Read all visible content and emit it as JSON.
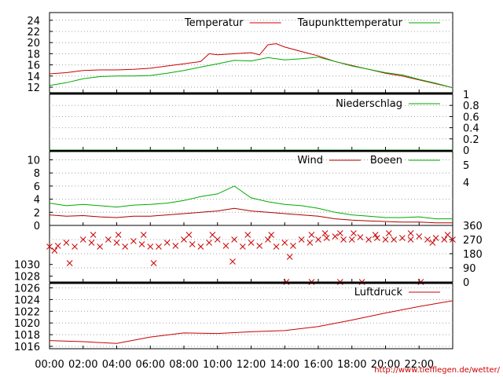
{
  "chart_data": {
    "time_labels": [
      "00:00",
      "02:00",
      "04:00",
      "06:00",
      "08:00",
      "10:00",
      "12:00",
      "14:00",
      "16:00",
      "18:00",
      "20:00",
      "22:00"
    ],
    "footer_url": "http://www.tiefflegen.de/wetter/",
    "panels": [
      {
        "id": "temperature",
        "type": "line",
        "ylim": [
          11,
          25
        ],
        "yticks": [
          12,
          14,
          16,
          18,
          20,
          22,
          24
        ],
        "y_axis_side": "left",
        "series": [
          {
            "name": "Temperatur",
            "color": "#cc0000",
            "x_hours": [
              0,
              1,
              2,
              3,
              4,
              5,
              6,
              7,
              8,
              9,
              9.5,
              10,
              11,
              12,
              12.5,
              13,
              13.5,
              14,
              15,
              16,
              17,
              18,
              19,
              20,
              21,
              22,
              23,
              24
            ],
            "values": [
              14.4,
              14.6,
              15.0,
              15.1,
              15.1,
              15.2,
              15.4,
              15.8,
              16.2,
              16.6,
              18.0,
              17.8,
              18.0,
              18.2,
              17.8,
              19.6,
              19.8,
              19.2,
              18.4,
              17.6,
              16.6,
              15.9,
              15.2,
              14.5,
              14.0,
              13.3,
              12.6,
              11.9
            ]
          },
          {
            "name": "Taupunkttemperatur",
            "color": "#00aa00",
            "x_hours": [
              0,
              1,
              2,
              3,
              4,
              5,
              6,
              7,
              8,
              9,
              10,
              11,
              12,
              13,
              14,
              15,
              16,
              17,
              18,
              19,
              20,
              21,
              22,
              23,
              24
            ],
            "values": [
              12.3,
              12.8,
              13.5,
              13.9,
              14.0,
              14.0,
              14.1,
              14.5,
              15.0,
              15.6,
              16.2,
              16.8,
              16.7,
              17.3,
              16.9,
              17.1,
              17.4,
              16.6,
              15.8,
              15.2,
              14.6,
              14.2,
              13.4,
              12.7,
              11.9
            ]
          }
        ]
      },
      {
        "id": "precipitation",
        "type": "line",
        "ylim": [
          0,
          1
        ],
        "yticks": [
          "0",
          "0.2",
          "0.4",
          "0.6",
          "0.8",
          "1"
        ],
        "y_axis_side": "right",
        "series": [
          {
            "name": "Niederschlag",
            "color": "#00aa00",
            "x_hours": [
              0,
              24
            ],
            "values": [
              0,
              0
            ]
          }
        ]
      },
      {
        "id": "wind",
        "type": "line",
        "ylim": [
          0,
          11
        ],
        "yticks": [
          0,
          2,
          4,
          6,
          8,
          10
        ],
        "y_axis_side": "left",
        "right_ticks": [
          "4",
          "5"
        ],
        "series": [
          {
            "name": "Wind",
            "color": "#aa0000",
            "x_hours": [
              0,
              1,
              2,
              3,
              4,
              5,
              6,
              7,
              8,
              9,
              10,
              11,
              12,
              13,
              14,
              15,
              16,
              17,
              18,
              19,
              20,
              21,
              22,
              23,
              24
            ],
            "values": [
              1.6,
              1.4,
              1.5,
              1.3,
              1.2,
              1.4,
              1.4,
              1.6,
              1.8,
              2.0,
              2.2,
              2.6,
              2.2,
              2.0,
              1.8,
              1.6,
              1.4,
              1.0,
              0.8,
              0.7,
              0.6,
              0.5,
              0.5,
              0.4,
              0.4
            ]
          },
          {
            "name": "Boeen",
            "color": "#00aa00",
            "x_hours": [
              0,
              1,
              2,
              3,
              4,
              5,
              6,
              7,
              8,
              9,
              10,
              11,
              12,
              13,
              14,
              15,
              16,
              17,
              18,
              19,
              20,
              21,
              22,
              23,
              24
            ],
            "values": [
              3.4,
              3.0,
              3.2,
              3.0,
              2.8,
              3.1,
              3.2,
              3.4,
              3.8,
              4.4,
              4.8,
              6.0,
              4.2,
              3.6,
              3.2,
              3.0,
              2.6,
              2.0,
              1.6,
              1.4,
              1.2,
              1.2,
              1.3,
              1.0,
              1.0
            ]
          }
        ]
      },
      {
        "id": "direction",
        "type": "scatter",
        "ylim": [
          0,
          360
        ],
        "yticks": [
          0,
          90,
          180,
          270,
          360
        ],
        "y_axis_side": "right",
        "marker": "x",
        "series": [
          {
            "name": "",
            "color": "#cc0000",
            "x_hours": [
              0,
              0.5,
              1,
              1.5,
              2,
              2.5,
              3,
              3.5,
              4,
              4.5,
              5,
              5.5,
              6,
              6.5,
              7,
              7.5,
              8,
              8.5,
              9,
              9.5,
              10,
              10.5,
              11,
              11.5,
              12,
              12.5,
              13,
              13.5,
              14,
              14.5,
              15,
              15.5,
              16,
              16.5,
              17,
              17.5,
              18,
              18.5,
              19,
              19.5,
              20,
              20.5,
              21,
              21.5,
              22,
              22.5,
              23,
              23.5,
              24
            ],
            "values": [
              225,
              230,
              250,
              225,
              270,
              250,
              225,
              270,
              250,
              225,
              260,
              240,
              225,
              225,
              250,
              230,
              270,
              240,
              225,
              250,
              270,
              230,
              270,
              225,
              250,
              230,
              270,
              225,
              250,
              230,
              270,
              250,
              270,
              280,
              290,
              270,
              270,
              285,
              270,
              280,
              270,
              270,
              280,
              270,
              290,
              270,
              280,
              270,
              270
            ]
          },
          {
            "name": "",
            "color": "#cc0000",
            "x_hours": [
              0.3,
              1.2,
              2.6,
              4.1,
              5.6,
              6.2,
              8.3,
              9.7,
              10.9,
              11.8,
              13.2,
              14.3,
              15.6,
              16.4,
              17.3,
              18.1,
              19.4,
              20.2,
              21.5,
              22.8,
              23.7
            ],
            "values": [
              200,
              120,
              300,
              300,
              300,
              120,
              300,
              300,
              130,
              300,
              300,
              160,
              300,
              310,
              310,
              310,
              300,
              310,
              310,
              250,
              300
            ]
          },
          {
            "name": "",
            "color": "#cc0000",
            "x_hours": [
              14.1,
              15.6,
              17.3,
              18.6,
              22.1
            ],
            "values": [
              0,
              0,
              0,
              0,
              0
            ]
          }
        ]
      },
      {
        "id": "pressure",
        "type": "line",
        "ylim": [
          1015,
          1031
        ],
        "yticks": [
          1016,
          1018,
          1020,
          1022,
          1024,
          1026,
          1028,
          1030
        ],
        "y_axis_side": "left",
        "series": [
          {
            "name": "Luftdruck",
            "color": "#cc0000",
            "x_hours": [
              0,
              2,
              4,
              6,
              8,
              10,
              12,
              14,
              16,
              18,
              20,
              22,
              24
            ],
            "values": [
              1017.0,
              1016.8,
              1016.5,
              1017.6,
              1018.3,
              1018.2,
              1018.5,
              1018.7,
              1019.4,
              1020.5,
              1021.7,
              1022.8,
              1023.8
            ]
          }
        ]
      }
    ]
  }
}
